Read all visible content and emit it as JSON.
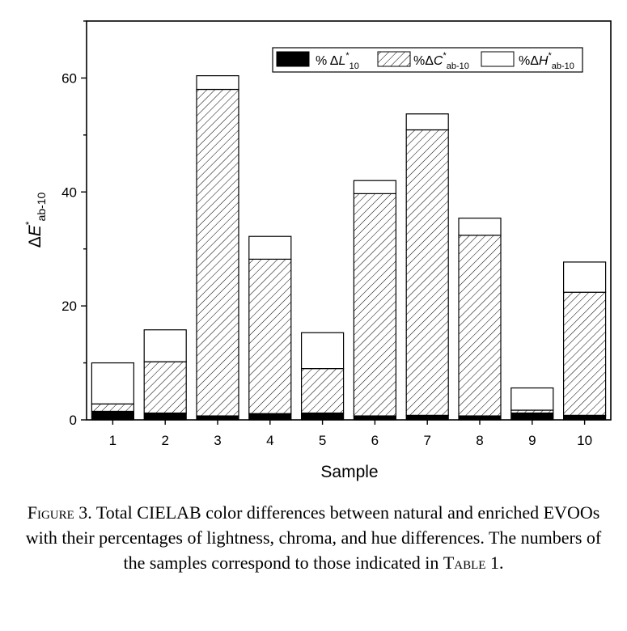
{
  "chart_data": {
    "type": "bar",
    "stacked": true,
    "categories": [
      "1",
      "2",
      "3",
      "4",
      "5",
      "6",
      "7",
      "8",
      "9",
      "10"
    ],
    "series": [
      {
        "name": "% ΔL*10",
        "pattern": "solid-black",
        "values": [
          1.5,
          1.2,
          0.7,
          1.1,
          1.2,
          0.7,
          0.8,
          0.7,
          1.2,
          0.8
        ]
      },
      {
        "name": "%ΔC*ab-10",
        "pattern": "diagonal-hatch",
        "values": [
          1.3,
          9.0,
          57.3,
          27.1,
          7.8,
          39.0,
          50.1,
          31.7,
          0.5,
          21.6
        ]
      },
      {
        "name": "%ΔH*ab-10",
        "pattern": "white",
        "values": [
          7.2,
          5.6,
          2.4,
          4.0,
          6.3,
          2.3,
          2.8,
          3.0,
          3.9,
          5.3
        ]
      }
    ],
    "xlabel": "Sample",
    "ylabel": "ΔE*ab-10",
    "ylim": [
      0,
      70
    ],
    "yticks": [
      0,
      20,
      40,
      60
    ],
    "legend_position": "top-right",
    "grid": false
  },
  "legend": {
    "l_prefix": "% Δ",
    "l_var": "L",
    "l_sup": "*",
    "l_sub": "10",
    "c_prefix": "%Δ",
    "c_var": "C",
    "c_sup": "*",
    "c_sub": "ab-10",
    "h_prefix": "%Δ",
    "h_var": "H",
    "h_sup": "*",
    "h_sub": "ab-10"
  },
  "axis": {
    "x_title": "Sample",
    "y_delta": "Δ",
    "y_var": "E",
    "y_sup": "*",
    "y_sub": "ab-10"
  },
  "caption": {
    "figure_label": "Figure",
    "figure_number": " 3.",
    "text_1": " Total CIELAB color differences between natural and enriched EVOOs with their percentages of lightness, chroma, and hue differences. The numbers of the samples correspond to those indicated in ",
    "table_label": "Table",
    "text_2": " 1."
  }
}
